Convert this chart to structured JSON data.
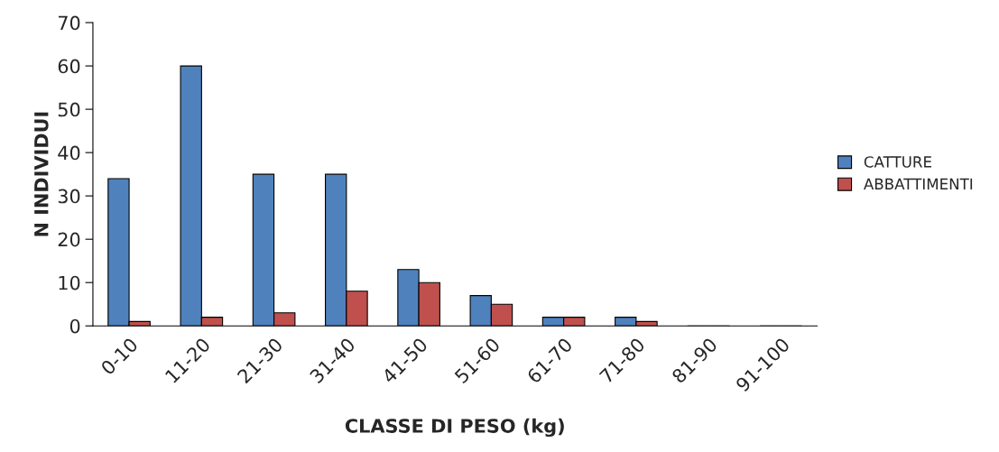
{
  "chart_data": {
    "type": "bar",
    "xlabel": "CLASSE DI PESO (kg)",
    "ylabel": "N INDIVIDUI",
    "categories": [
      "0-10",
      "11-20",
      "21-30",
      "31-40",
      "41-50",
      "51-60",
      "61-70",
      "71-80",
      "81-90",
      "91-100"
    ],
    "series": [
      {
        "name": "CATTURE",
        "color": "#4f81bd",
        "values": [
          34,
          60,
          35,
          35,
          13,
          7,
          2,
          2,
          0,
          0
        ]
      },
      {
        "name": "ABBATTIMENTI",
        "color": "#c0504d",
        "values": [
          1,
          2,
          3,
          8,
          10,
          5,
          2,
          1,
          0,
          0
        ]
      }
    ],
    "ylim": [
      0,
      70
    ],
    "yticks": [
      0,
      10,
      20,
      30,
      40,
      50,
      60,
      70
    ],
    "grid": false,
    "legend": "right"
  }
}
